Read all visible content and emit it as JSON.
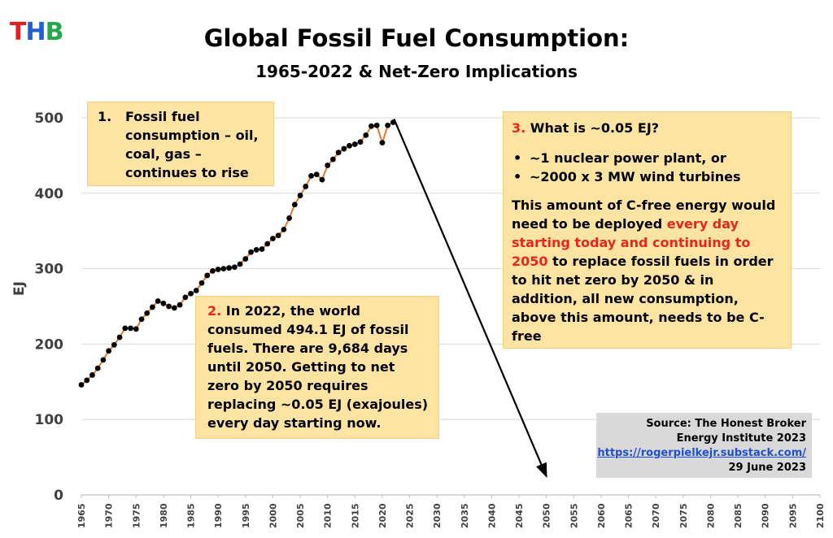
{
  "logo": {
    "t": "T",
    "h": "H",
    "b": "B"
  },
  "header": {
    "title": "Global Fossil Fuel Consumption:",
    "subtitle": "1965-2022 & Net-Zero Implications"
  },
  "box1": {
    "num": "1.",
    "text": "Fossil fuel consumption – oil, coal, gas – continues to rise"
  },
  "box2": {
    "num": "2.",
    "text": "In 2022, the world consumed 494.1 EJ of fossil fuels.  There are 9,684 days until 2050. Getting to net zero by 2050 requires replacing ~0.05 EJ (exajoules) every day starting now."
  },
  "box3": {
    "num": "3.",
    "heading": "What is ~0.05 EJ?",
    "bullets": [
      "~1 nuclear power plant, or",
      "~2000 x 3 MW wind turbines"
    ],
    "para_a": "This amount of C-free energy would need to be deployed ",
    "para_red": "every day starting today and continuing to 2050",
    "para_b": " to replace fossil fuels in order to hit net zero by 2050 & in addition, all new consumption, above this amount, needs to be C-free"
  },
  "source": {
    "line1": "Source: The Honest Broker",
    "line2": "Energy Institute 2023",
    "link": "https://rogerpielkejr.substack.com/",
    "date": "29 June 2023"
  },
  "colors": {
    "line": "#e8782d",
    "points": "#000000",
    "box": "#fde4a2",
    "accent_red": "#e8251e",
    "logo_t": "#e0201f",
    "logo_h": "#1f5fd0",
    "logo_b": "#25a84a"
  },
  "chart_data": {
    "type": "line",
    "title": "Global Fossil Fuel Consumption:",
    "subtitle": "1965-2022 & Net-Zero Implications",
    "xlabel": "",
    "ylabel": "EJ",
    "xlim": [
      1965,
      2100
    ],
    "ylim": [
      0,
      500
    ],
    "yticks": [
      0,
      100,
      200,
      300,
      400,
      500
    ],
    "xticks": [
      1965,
      1970,
      1975,
      1980,
      1985,
      1990,
      1995,
      2000,
      2005,
      2010,
      2015,
      2020,
      2025,
      2030,
      2035,
      2040,
      2045,
      2050,
      2055,
      2060,
      2065,
      2070,
      2075,
      2080,
      2085,
      2090,
      2095,
      2100
    ],
    "grid": true,
    "legend": "none",
    "series": [
      {
        "x": [
          1965,
          1966,
          1967,
          1968,
          1969,
          1970,
          1971,
          1972,
          1973,
          1974,
          1975,
          1976,
          1977,
          1978,
          1979,
          1980,
          1981,
          1982,
          1983,
          1984,
          1985,
          1986,
          1987,
          1988,
          1989,
          1990,
          1991,
          1992,
          1993,
          1994,
          1995,
          1996,
          1997,
          1998,
          1999,
          2000,
          2001,
          2002,
          2003,
          2004,
          2005,
          2006,
          2007,
          2008,
          2009,
          2010,
          2011,
          2012,
          2013,
          2014,
          2015,
          2016,
          2017,
          2018,
          2019,
          2020,
          2021,
          2022
        ],
        "values": [
          146,
          152,
          159,
          168,
          179,
          191,
          199,
          209,
          221,
          221,
          220,
          233,
          241,
          249,
          257,
          254,
          250,
          248,
          252,
          262,
          267,
          271,
          281,
          291,
          297,
          299,
          300,
          301,
          302,
          306,
          313,
          322,
          325,
          326,
          333,
          340,
          344,
          352,
          367,
          385,
          397,
          409,
          423,
          425,
          418,
          437,
          445,
          454,
          459,
          463,
          465,
          468,
          477,
          489,
          490,
          467,
          490,
          494.1
        ]
      }
    ],
    "annotations": [
      {
        "type": "arrow",
        "from": [
          2022,
          494.1
        ],
        "to": [
          2050,
          30
        ],
        "color": "#000000"
      }
    ]
  }
}
